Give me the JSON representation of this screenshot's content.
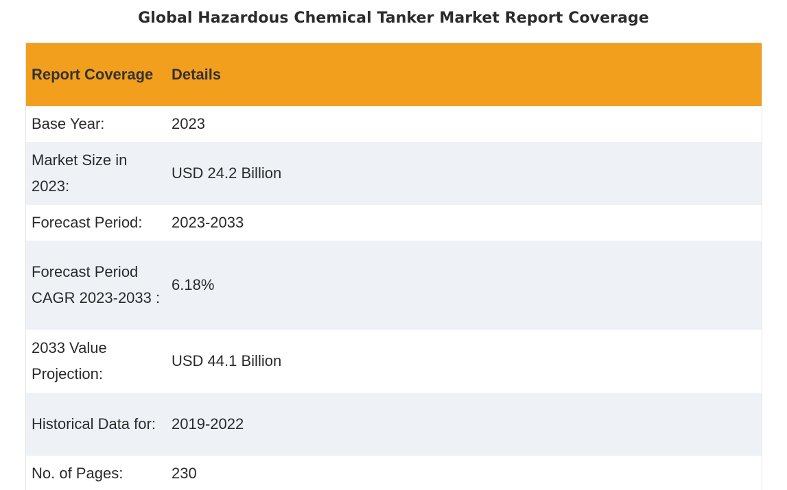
{
  "title": "Global Hazardous Chemical Tanker Market Report Coverage",
  "table": {
    "headers": [
      "Report Coverage",
      "Details"
    ],
    "rows": [
      {
        "label": "Base Year:",
        "value": "2023"
      },
      {
        "label": "Market Size in 2023:",
        "value": "USD 24.2 Billion"
      },
      {
        "label": "Forecast Period:",
        "value": "2023-2033"
      },
      {
        "label": "Forecast Period CAGR 2023-2033 :",
        "value": "6.18%"
      },
      {
        "label": "2033 Value Projection:",
        "value": "USD 44.1 Billion"
      },
      {
        "label": "Historical Data for:",
        "value": "2019-2022"
      },
      {
        "label": "No. of Pages:",
        "value": "230"
      }
    ]
  },
  "colors": {
    "header_bg": "#f39f1e",
    "alt_row_bg": "#eef2f7",
    "text": "#2a2a2a"
  }
}
